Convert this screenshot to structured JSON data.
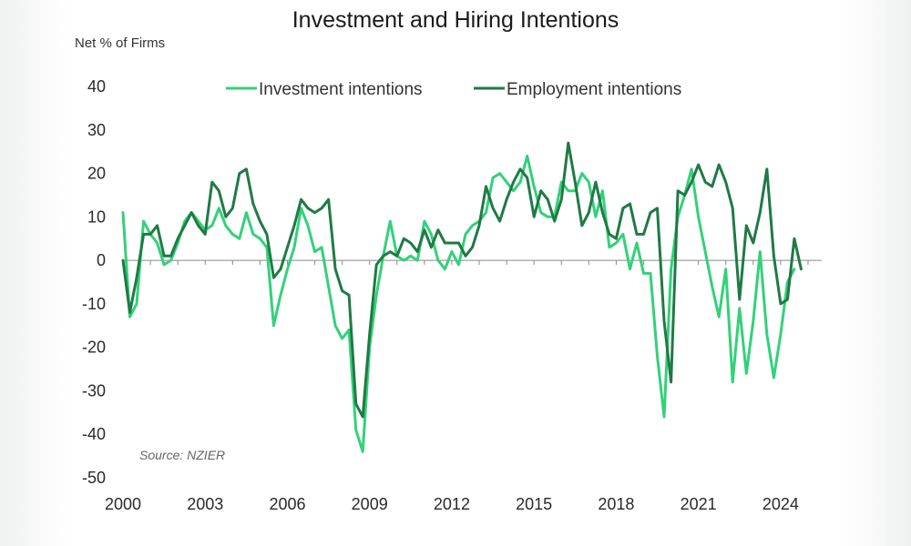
{
  "chart_data": {
    "type": "line",
    "title": "Investment and Hiring Intentions",
    "ylabel": "Net % of Firms",
    "xlabel": "",
    "source": "Source: NZIER",
    "ylim": [
      -50,
      40
    ],
    "yticks": [
      40,
      30,
      20,
      10,
      0,
      -10,
      -20,
      -30,
      -40,
      -50
    ],
    "xlim": [
      2000,
      2025.5
    ],
    "xticks": [
      2000,
      2003,
      2006,
      2009,
      2012,
      2015,
      2018,
      2021,
      2024
    ],
    "grid": false,
    "legend_position": "top",
    "series": [
      {
        "name": "Investment intentions",
        "color": "#33d17a",
        "points": [
          [
            2000.0,
            11
          ],
          [
            2000.25,
            -13
          ],
          [
            2000.5,
            -10
          ],
          [
            2000.75,
            9
          ],
          [
            2001.0,
            6
          ],
          [
            2001.25,
            4
          ],
          [
            2001.5,
            -1
          ],
          [
            2001.75,
            0
          ],
          [
            2002.0,
            4
          ],
          [
            2002.25,
            9
          ],
          [
            2002.5,
            11
          ],
          [
            2002.75,
            9
          ],
          [
            2003.0,
            7
          ],
          [
            2003.25,
            8
          ],
          [
            2003.5,
            12
          ],
          [
            2003.75,
            8
          ],
          [
            2004.0,
            6
          ],
          [
            2004.25,
            5
          ],
          [
            2004.5,
            11
          ],
          [
            2004.75,
            6
          ],
          [
            2005.0,
            5
          ],
          [
            2005.25,
            3
          ],
          [
            2005.5,
            -15
          ],
          [
            2005.75,
            -8
          ],
          [
            2006.0,
            -2
          ],
          [
            2006.25,
            3
          ],
          [
            2006.5,
            12
          ],
          [
            2006.75,
            8
          ],
          [
            2007.0,
            2
          ],
          [
            2007.25,
            3
          ],
          [
            2007.5,
            -6
          ],
          [
            2007.75,
            -15
          ],
          [
            2008.0,
            -18
          ],
          [
            2008.25,
            -16
          ],
          [
            2008.5,
            -39
          ],
          [
            2008.75,
            -44
          ],
          [
            2009.0,
            -20
          ],
          [
            2009.25,
            -8
          ],
          [
            2009.5,
            1
          ],
          [
            2009.75,
            9
          ],
          [
            2010.0,
            1
          ],
          [
            2010.25,
            0
          ],
          [
            2010.5,
            1
          ],
          [
            2010.75,
            0
          ],
          [
            2011.0,
            9
          ],
          [
            2011.25,
            6
          ],
          [
            2011.5,
            0
          ],
          [
            2011.75,
            -2
          ],
          [
            2012.0,
            2
          ],
          [
            2012.25,
            -1
          ],
          [
            2012.5,
            6
          ],
          [
            2012.75,
            8
          ],
          [
            2013.0,
            9
          ],
          [
            2013.25,
            11
          ],
          [
            2013.5,
            19
          ],
          [
            2013.75,
            20
          ],
          [
            2014.0,
            18
          ],
          [
            2014.25,
            16
          ],
          [
            2014.5,
            18
          ],
          [
            2014.75,
            24
          ],
          [
            2015.0,
            17
          ],
          [
            2015.25,
            11
          ],
          [
            2015.5,
            10
          ],
          [
            2015.75,
            10
          ],
          [
            2016.0,
            18
          ],
          [
            2016.25,
            16
          ],
          [
            2016.5,
            16
          ],
          [
            2016.75,
            20
          ],
          [
            2017.0,
            18
          ],
          [
            2017.25,
            10
          ],
          [
            2017.5,
            16
          ],
          [
            2017.75,
            3
          ],
          [
            2018.0,
            4
          ],
          [
            2018.25,
            6
          ],
          [
            2018.5,
            -2
          ],
          [
            2018.75,
            4
          ],
          [
            2019.0,
            -3
          ],
          [
            2019.25,
            -3
          ],
          [
            2019.5,
            -22
          ],
          [
            2019.75,
            -36
          ],
          [
            2020.0,
            -2
          ],
          [
            2020.25,
            10
          ],
          [
            2020.5,
            15
          ],
          [
            2020.75,
            21
          ],
          [
            2021.0,
            10
          ],
          [
            2021.25,
            2
          ],
          [
            2021.5,
            -6
          ],
          [
            2021.75,
            -13
          ],
          [
            2022.0,
            -2
          ],
          [
            2022.25,
            -28
          ],
          [
            2022.5,
            -11
          ],
          [
            2022.75,
            -26
          ],
          [
            2023.0,
            -14
          ],
          [
            2023.25,
            2
          ],
          [
            2023.5,
            -17
          ],
          [
            2023.75,
            -27
          ],
          [
            2024.0,
            -17
          ],
          [
            2024.25,
            -5
          ],
          [
            2024.5,
            -2
          ]
        ]
      },
      {
        "name": "Employment intentions",
        "color": "#1f7a44",
        "points": [
          [
            2000.0,
            0
          ],
          [
            2000.25,
            -12
          ],
          [
            2000.5,
            -4
          ],
          [
            2000.75,
            6
          ],
          [
            2001.0,
            6
          ],
          [
            2001.25,
            8
          ],
          [
            2001.5,
            1
          ],
          [
            2001.75,
            1
          ],
          [
            2002.0,
            5
          ],
          [
            2002.25,
            8
          ],
          [
            2002.5,
            11
          ],
          [
            2002.75,
            8
          ],
          [
            2003.0,
            6
          ],
          [
            2003.25,
            18
          ],
          [
            2003.5,
            16
          ],
          [
            2003.75,
            10
          ],
          [
            2004.0,
            12
          ],
          [
            2004.25,
            20
          ],
          [
            2004.5,
            21
          ],
          [
            2004.75,
            13
          ],
          [
            2005.0,
            9
          ],
          [
            2005.25,
            6
          ],
          [
            2005.5,
            -4
          ],
          [
            2005.75,
            -2
          ],
          [
            2006.0,
            3
          ],
          [
            2006.25,
            8
          ],
          [
            2006.5,
            14
          ],
          [
            2006.75,
            12
          ],
          [
            2007.0,
            11
          ],
          [
            2007.25,
            12
          ],
          [
            2007.5,
            14
          ],
          [
            2007.75,
            -2
          ],
          [
            2008.0,
            -7
          ],
          [
            2008.25,
            -8
          ],
          [
            2008.5,
            -33
          ],
          [
            2008.75,
            -36
          ],
          [
            2009.0,
            -17
          ],
          [
            2009.25,
            -1
          ],
          [
            2009.5,
            1
          ],
          [
            2009.75,
            2
          ],
          [
            2010.0,
            1
          ],
          [
            2010.25,
            5
          ],
          [
            2010.5,
            4
          ],
          [
            2010.75,
            2
          ],
          [
            2011.0,
            7
          ],
          [
            2011.25,
            3
          ],
          [
            2011.5,
            7
          ],
          [
            2011.75,
            4
          ],
          [
            2012.0,
            4
          ],
          [
            2012.25,
            4
          ],
          [
            2012.5,
            1
          ],
          [
            2012.75,
            3
          ],
          [
            2013.0,
            8
          ],
          [
            2013.25,
            17
          ],
          [
            2013.5,
            12
          ],
          [
            2013.75,
            9
          ],
          [
            2014.0,
            14
          ],
          [
            2014.25,
            18
          ],
          [
            2014.5,
            21
          ],
          [
            2014.75,
            19
          ],
          [
            2015.0,
            10
          ],
          [
            2015.25,
            16
          ],
          [
            2015.5,
            14
          ],
          [
            2015.75,
            9
          ],
          [
            2016.0,
            14
          ],
          [
            2016.25,
            27
          ],
          [
            2016.5,
            18
          ],
          [
            2016.75,
            8
          ],
          [
            2017.0,
            11
          ],
          [
            2017.25,
            18
          ],
          [
            2017.5,
            11
          ],
          [
            2017.75,
            6
          ],
          [
            2018.0,
            5
          ],
          [
            2018.25,
            12
          ],
          [
            2018.5,
            13
          ],
          [
            2018.75,
            6
          ],
          [
            2019.0,
            6
          ],
          [
            2019.25,
            11
          ],
          [
            2019.5,
            12
          ],
          [
            2019.75,
            -14
          ],
          [
            2020.0,
            -28
          ],
          [
            2020.25,
            16
          ],
          [
            2020.5,
            15
          ],
          [
            2020.75,
            18
          ],
          [
            2021.0,
            22
          ],
          [
            2021.25,
            18
          ],
          [
            2021.5,
            17
          ],
          [
            2021.75,
            22
          ],
          [
            2022.0,
            18
          ],
          [
            2022.25,
            12
          ],
          [
            2022.5,
            -9
          ],
          [
            2022.75,
            8
          ],
          [
            2023.0,
            4
          ],
          [
            2023.25,
            11
          ],
          [
            2023.5,
            21
          ],
          [
            2023.75,
            1
          ],
          [
            2024.0,
            -10
          ],
          [
            2024.25,
            -9
          ],
          [
            2024.5,
            5
          ],
          [
            2024.75,
            -2
          ]
        ]
      }
    ]
  }
}
